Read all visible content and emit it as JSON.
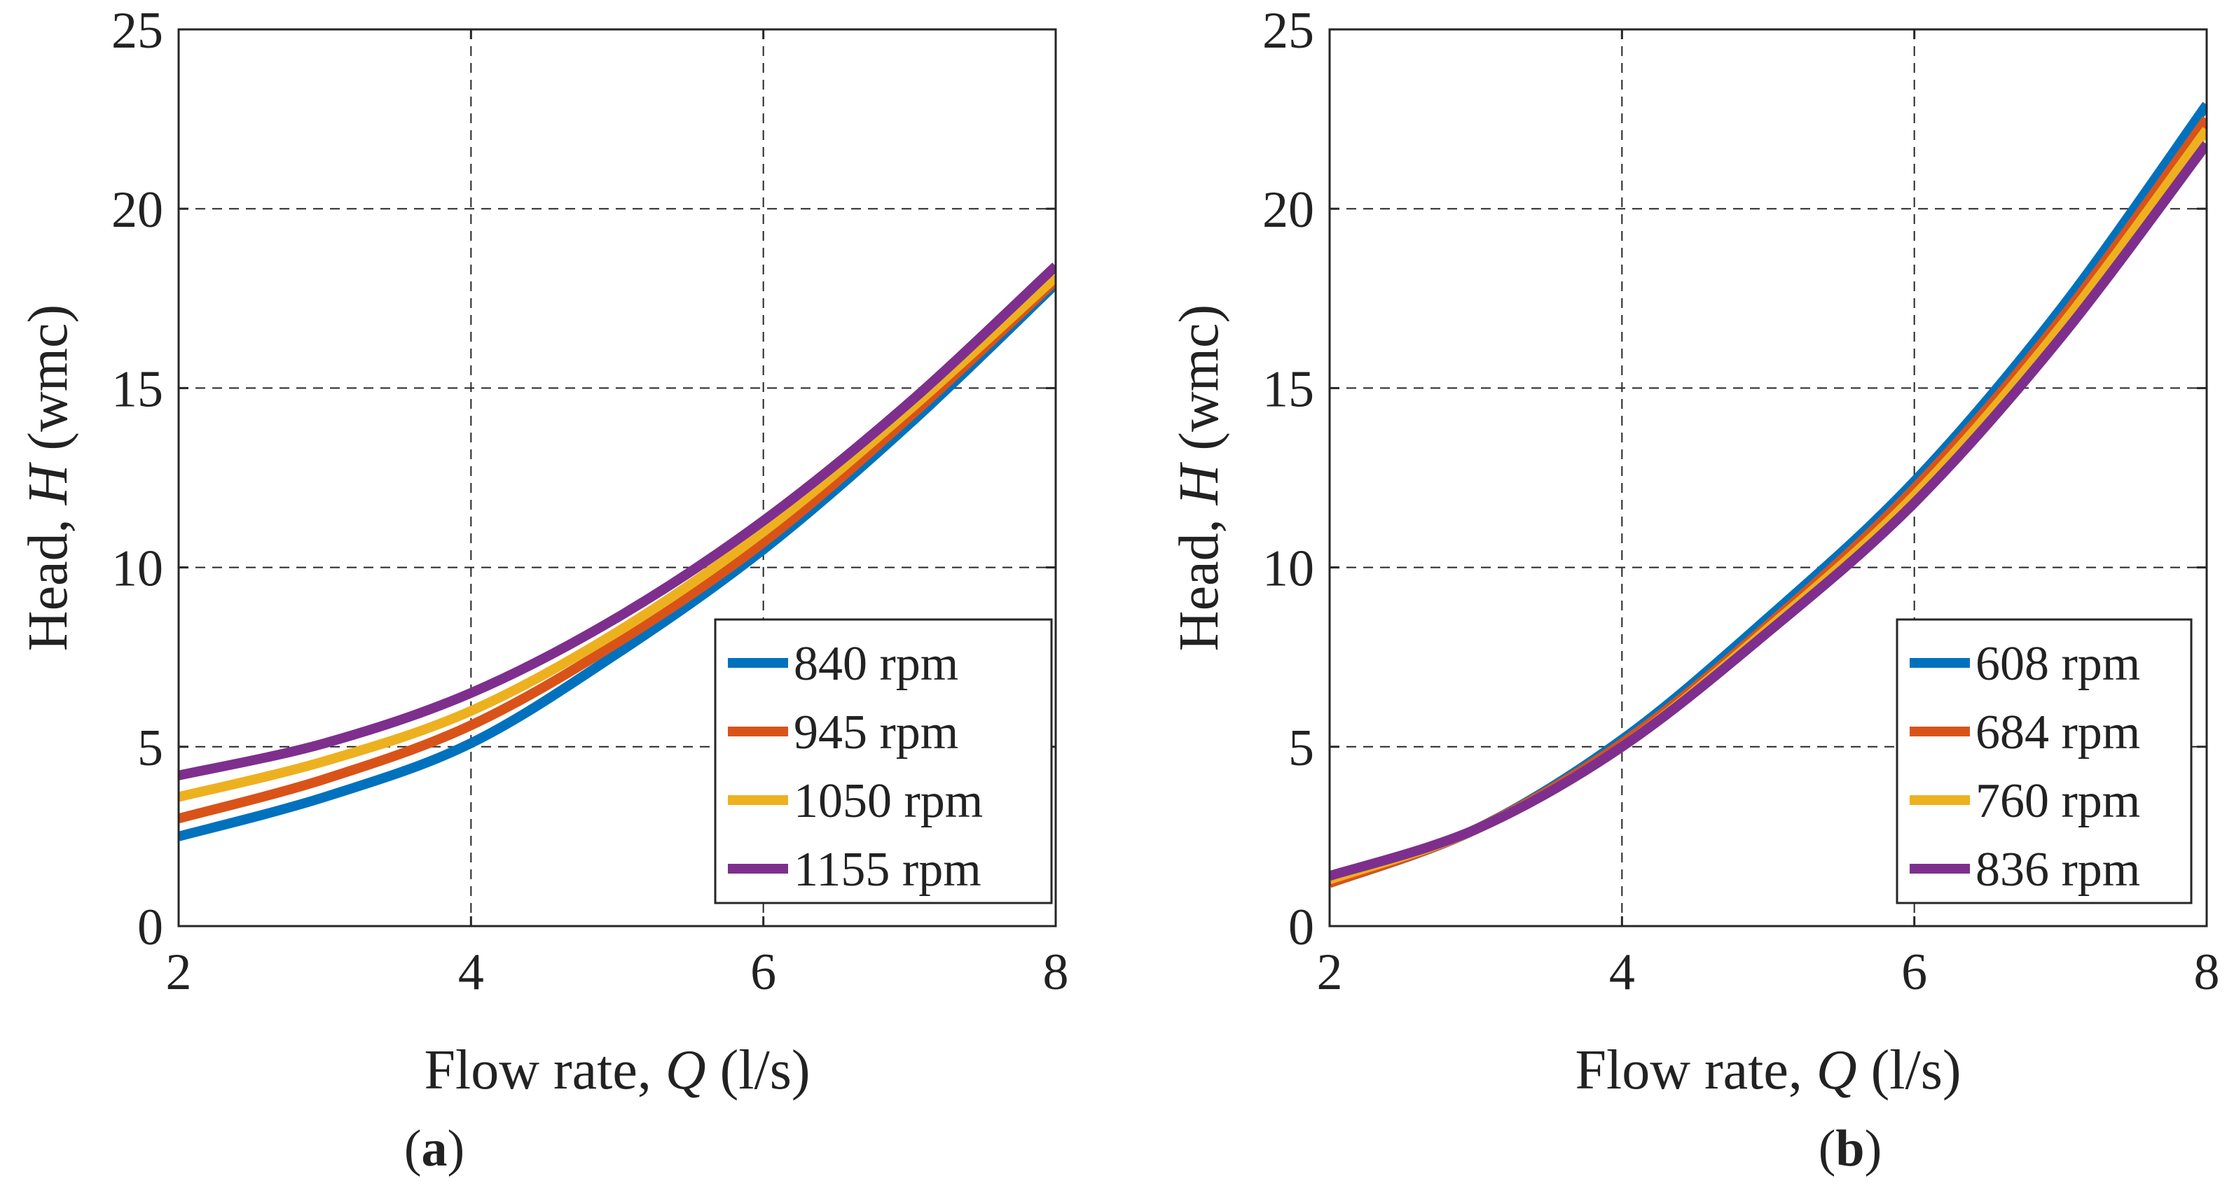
{
  "chart_data": [
    {
      "type": "line",
      "panel_label": "a",
      "xlabel": {
        "prefix": "Flow rate,  ",
        "symbol": "Q",
        "unit": " (l/s)"
      },
      "ylabel": {
        "prefix": "Head,  ",
        "symbol": "H",
        "unit": " (wmc)"
      },
      "xlim": [
        2,
        8
      ],
      "ylim": [
        0,
        25
      ],
      "xticks": [
        2,
        4,
        6,
        8
      ],
      "yticks": [
        0,
        5,
        10,
        15,
        20,
        25
      ],
      "grid": true,
      "legend_position": "bottom-right",
      "x": [
        2,
        3,
        4,
        5,
        6,
        7,
        8
      ],
      "series": [
        {
          "name": "840 rpm",
          "color": "#0072BD",
          "values": [
            2.5,
            3.6,
            5.1,
            7.6,
            10.5,
            14.0,
            17.9
          ]
        },
        {
          "name": "945 rpm",
          "color": "#D95319",
          "values": [
            3.0,
            4.1,
            5.6,
            7.9,
            10.7,
            14.2,
            18.0
          ]
        },
        {
          "name": "1050 rpm",
          "color": "#EDB120",
          "values": [
            3.6,
            4.6,
            6.0,
            8.2,
            11.0,
            14.4,
            18.1
          ]
        },
        {
          "name": "1155 rpm",
          "color": "#7E2F8E",
          "values": [
            4.2,
            5.1,
            6.5,
            8.6,
            11.3,
            14.6,
            18.4
          ]
        }
      ]
    },
    {
      "type": "line",
      "panel_label": "b",
      "xlabel": {
        "prefix": "Flow rate,  ",
        "symbol": "Q",
        "unit": " (l/s)"
      },
      "ylabel": {
        "prefix": "Head,  ",
        "symbol": "H",
        "unit": " (wmc)"
      },
      "xlim": [
        2,
        8
      ],
      "ylim": [
        0,
        25
      ],
      "xticks": [
        2,
        4,
        6,
        8
      ],
      "yticks": [
        0,
        5,
        10,
        15,
        20,
        25
      ],
      "grid": true,
      "legend_position": "bottom-right",
      "x": [
        2,
        3,
        4,
        5,
        6,
        7,
        8
      ],
      "series": [
        {
          "name": "608 rpm",
          "color": "#0072BD",
          "values": [
            1.2,
            2.7,
            5.2,
            8.6,
            12.4,
            17.2,
            22.9
          ]
        },
        {
          "name": "684 rpm",
          "color": "#D95319",
          "values": [
            1.2,
            2.7,
            5.1,
            8.4,
            12.2,
            16.9,
            22.5
          ]
        },
        {
          "name": "760 rpm",
          "color": "#EDB120",
          "values": [
            1.3,
            2.7,
            5.0,
            8.3,
            12.0,
            16.7,
            22.2
          ]
        },
        {
          "name": "836 rpm",
          "color": "#7E2F8E",
          "values": [
            1.4,
            2.7,
            5.0,
            8.2,
            11.8,
            16.4,
            21.8
          ]
        }
      ]
    }
  ]
}
